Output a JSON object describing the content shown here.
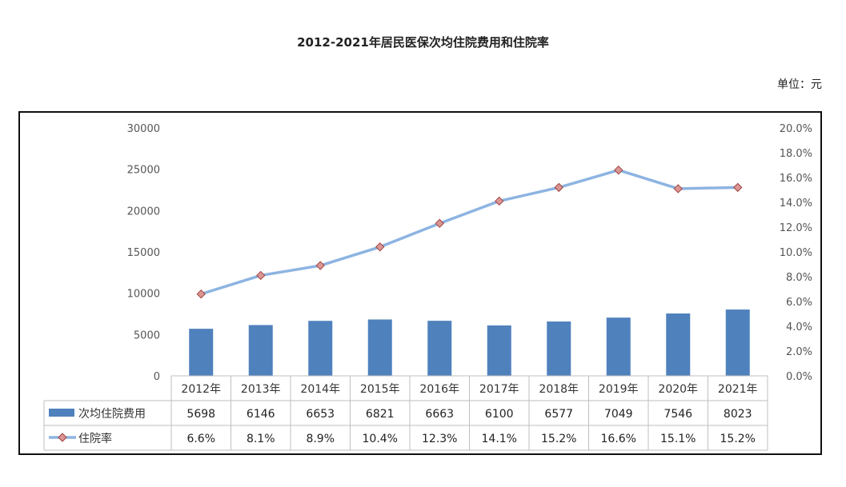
{
  "title": "2012-2021年居民医保次均住院费用和住院率",
  "unit_label": "单位：元",
  "colors": {
    "bar": "#4F81BD",
    "line": "#8DB4E2",
    "marker_fill": "#D99694",
    "marker_stroke": "#A0443F"
  },
  "chart_data": {
    "type": "bar+line",
    "categories": [
      "2012年",
      "2013年",
      "2014年",
      "2015年",
      "2016年",
      "2017年",
      "2018年",
      "2019年",
      "2020年",
      "2021年"
    ],
    "series": [
      {
        "name": "次均住院费用",
        "type": "bar",
        "axis": "left",
        "values": [
          5698,
          6146,
          6653,
          6821,
          6663,
          6100,
          6577,
          7049,
          7546,
          8023
        ],
        "labels": [
          "5698",
          "6146",
          "6653",
          "6821",
          "6663",
          "6100",
          "6577",
          "7049",
          "7546",
          "8023"
        ]
      },
      {
        "name": "住院率",
        "type": "line",
        "axis": "right",
        "values": [
          6.6,
          8.1,
          8.9,
          10.4,
          12.3,
          14.1,
          15.2,
          16.6,
          15.1,
          15.2
        ],
        "labels": [
          "6.6%",
          "8.1%",
          "8.9%",
          "10.4%",
          "12.3%",
          "14.1%",
          "15.2%",
          "16.6%",
          "15.1%",
          "15.2%"
        ]
      }
    ],
    "left_axis": {
      "ylim": [
        0,
        30000
      ],
      "ticks": [
        "0",
        "5000",
        "10000",
        "15000",
        "20000",
        "25000",
        "30000"
      ]
    },
    "right_axis": {
      "ylim": [
        0,
        20
      ],
      "ticks": [
        "0.0%",
        "2.0%",
        "4.0%",
        "6.0%",
        "8.0%",
        "10.0%",
        "12.0%",
        "14.0%",
        "16.0%",
        "18.0%",
        "20.0%"
      ]
    },
    "grid": false,
    "legend": "data-table"
  }
}
